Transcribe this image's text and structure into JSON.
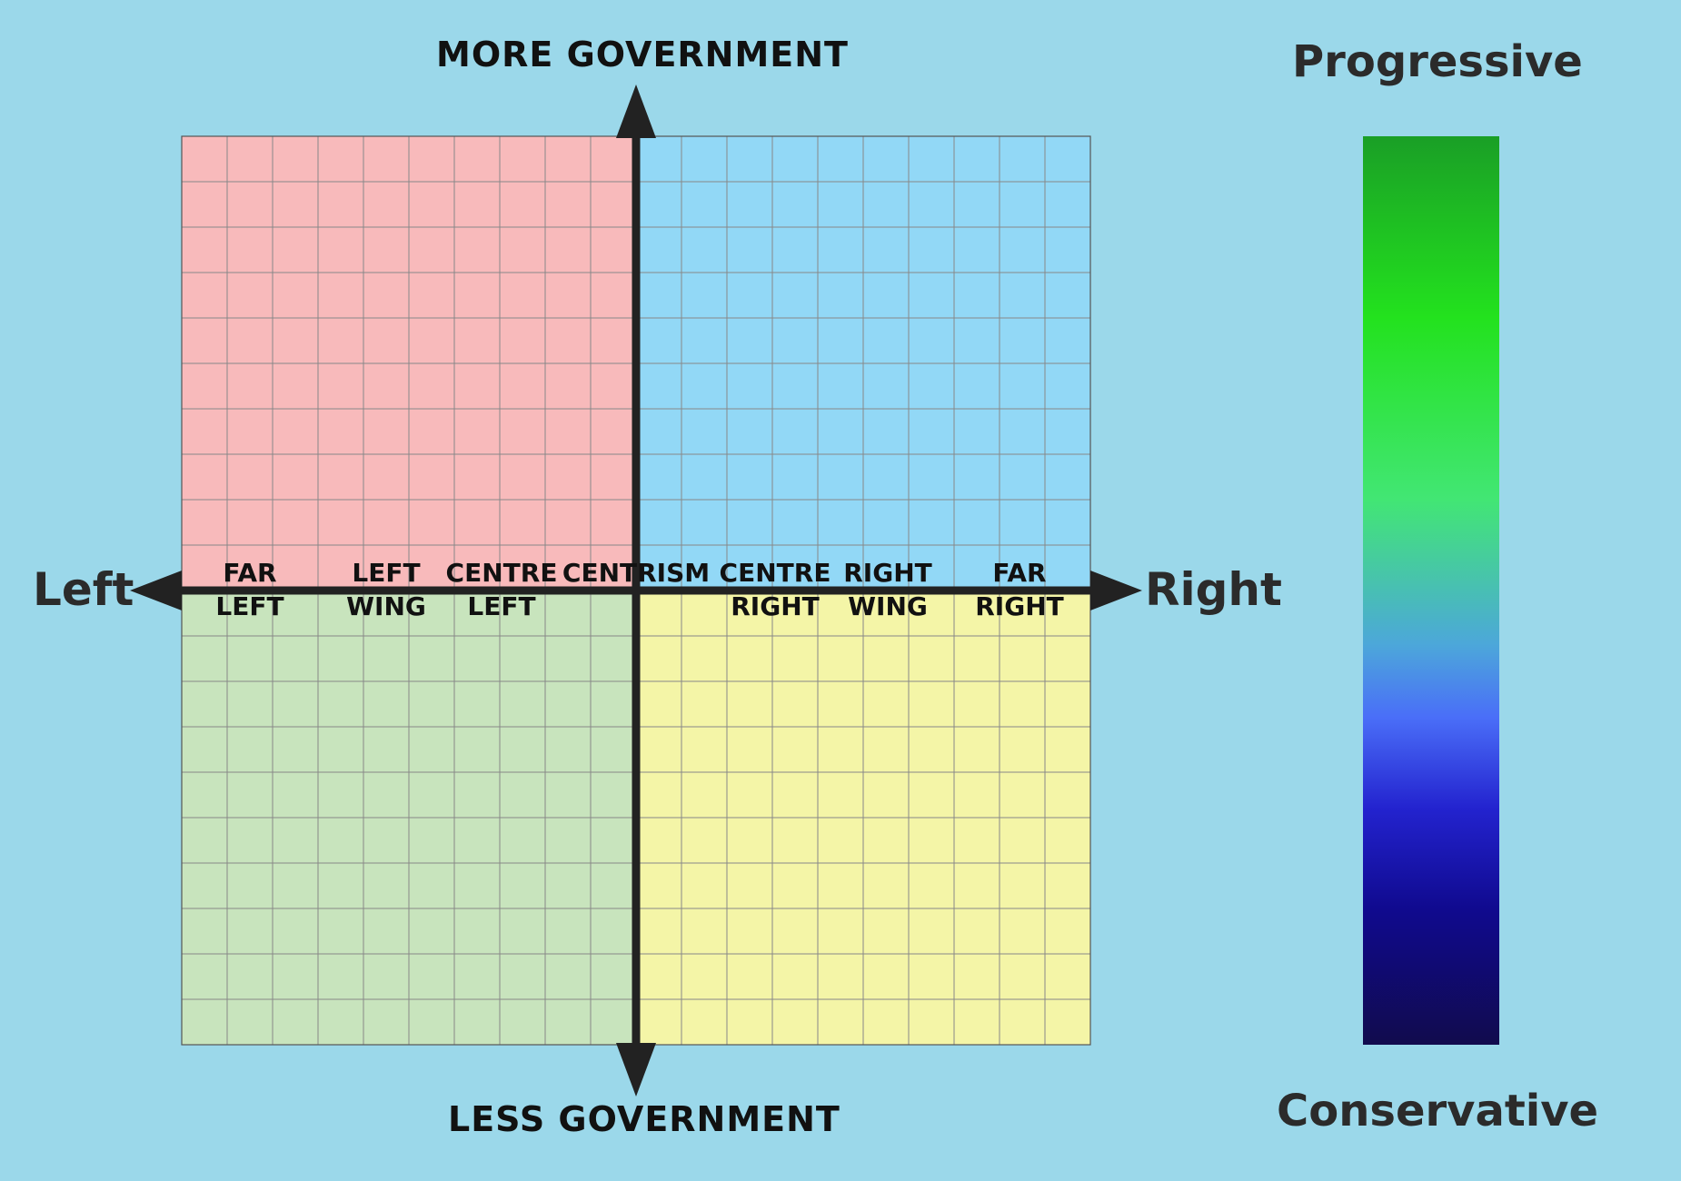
{
  "axes": {
    "top": "MORE GOVERNMENT",
    "bottom": "LESS GOVERNMENT",
    "left": "Left",
    "right": "Right"
  },
  "quadrants": {
    "top_left": "#f8babb",
    "top_right": "#92d8f6",
    "bottom_left": "#c8e4bd",
    "bottom_right": "#f4f5a7"
  },
  "colors": {
    "background": "#9bd8ea",
    "axis": "#222222",
    "grid_line": "#888888"
  },
  "grid": {
    "divisions_per_side": 10
  },
  "spectrum_labels": [
    {
      "key": "far-left",
      "lines": [
        "FAR",
        "LEFT"
      ]
    },
    {
      "key": "left-wing",
      "lines": [
        "LEFT",
        "WING"
      ]
    },
    {
      "key": "centre-left",
      "lines": [
        "CENTRE",
        "LEFT"
      ]
    },
    {
      "key": "centrism",
      "lines": [
        "CENTRISM"
      ]
    },
    {
      "key": "centre-right",
      "lines": [
        "CENTRE",
        "RIGHT"
      ]
    },
    {
      "key": "right-wing",
      "lines": [
        "RIGHT",
        "WING"
      ]
    },
    {
      "key": "far-right",
      "lines": [
        "FAR",
        "RIGHT"
      ]
    }
  ],
  "scale": {
    "top_label": "Progressive",
    "bottom_label": "Conservative",
    "gradient_stops": [
      "#1a9f26",
      "#23e21e",
      "#42e674",
      "#4ca7da",
      "#4a6ef8",
      "#2323cf",
      "#100a8f",
      "#110b4d"
    ]
  }
}
